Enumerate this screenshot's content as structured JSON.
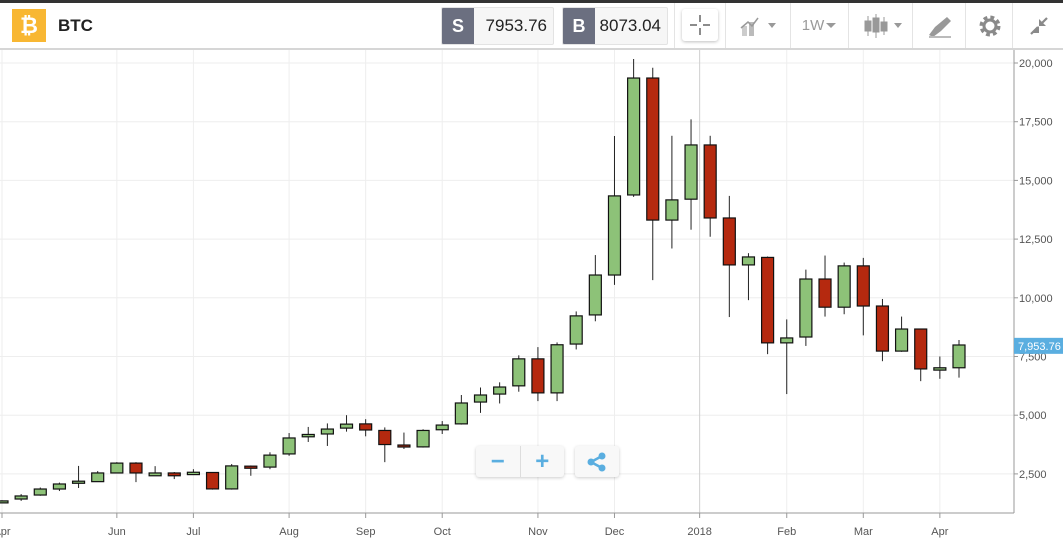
{
  "header": {
    "coin_icon": "bitcoin-icon",
    "coin_glyph": "₿",
    "symbol": "BTC",
    "sell_label": "S",
    "sell_price": "7953.76",
    "buy_label": "B",
    "buy_price": "8073.04",
    "timeframe": "1W",
    "tools": [
      "crosshair-icon",
      "chart-type-icon",
      "timeframe-dropdown",
      "candlestick-icon",
      "draw-icon",
      "gear-icon",
      "collapse-icon"
    ]
  },
  "colors": {
    "up": "#8dc278",
    "down": "#b5290f",
    "accent": "#5aaee0",
    "coin": "#f8b733"
  },
  "controls": {
    "zoom_out": "−",
    "zoom_in": "+"
  },
  "chart_data": {
    "type": "candlestick",
    "ylim": [
      0,
      20500
    ],
    "y_ticks": [
      "2,500",
      "5,000",
      "7,500",
      "10,000",
      "12,500",
      "15,000",
      "17,500",
      "20,000"
    ],
    "y_tick_values": [
      2500,
      5000,
      7500,
      10000,
      12500,
      15000,
      17500,
      20000
    ],
    "x_tick_labels": [
      "Apr",
      "Jun",
      "Jul",
      "Aug",
      "Sep",
      "Oct",
      "Nov",
      "Dec",
      "2018",
      "Feb",
      "Mar",
      "Apr"
    ],
    "last_price_label": "7,953.76",
    "last_price": 7953.76,
    "grid": true,
    "candles": [
      [
        1280,
        1380,
        1260,
        1350
      ],
      [
        1430,
        1640,
        1350,
        1560
      ],
      [
        1600,
        1920,
        1570,
        1856
      ],
      [
        1856,
        2130,
        1770,
        2070
      ],
      [
        2100,
        2840,
        1900,
        2190
      ],
      [
        2170,
        2620,
        2160,
        2540
      ],
      [
        2540,
        3000,
        2540,
        2960
      ],
      [
        2960,
        3000,
        2150,
        2540
      ],
      [
        2420,
        2830,
        2420,
        2540
      ],
      [
        2540,
        2580,
        2280,
        2420
      ],
      [
        2470,
        2700,
        2460,
        2570
      ],
      [
        2560,
        2580,
        1830,
        1860
      ],
      [
        1860,
        2920,
        1830,
        2840
      ],
      [
        2830,
        2860,
        2420,
        2740
      ],
      [
        2790,
        3420,
        2700,
        3300
      ],
      [
        3350,
        4240,
        3270,
        4030
      ],
      [
        4080,
        4500,
        3860,
        4180
      ],
      [
        4200,
        4650,
        3690,
        4410
      ],
      [
        4450,
        5000,
        4300,
        4620
      ],
      [
        4630,
        4830,
        4100,
        4370
      ],
      [
        4350,
        4480,
        3000,
        3750
      ],
      [
        3730,
        4260,
        3560,
        3650
      ],
      [
        3650,
        4400,
        3620,
        4350
      ],
      [
        4380,
        4750,
        4200,
        4580
      ],
      [
        4630,
        5860,
        4600,
        5520
      ],
      [
        5560,
        6180,
        5100,
        5860
      ],
      [
        5900,
        6400,
        5500,
        6200
      ],
      [
        6250,
        7550,
        6000,
        7400
      ],
      [
        7400,
        7900,
        5600,
        5950
      ],
      [
        5950,
        8100,
        5600,
        8000
      ],
      [
        8030,
        9420,
        7800,
        9230
      ],
      [
        9270,
        11820,
        9000,
        10970
      ],
      [
        10970,
        16890,
        10550,
        14340
      ],
      [
        14380,
        20170,
        14300,
        19360
      ],
      [
        19360,
        19800,
        10750,
        13310
      ],
      [
        13310,
        16900,
        12100,
        14170
      ],
      [
        14200,
        17600,
        12900,
        16510
      ],
      [
        16510,
        16900,
        12600,
        13400
      ],
      [
        13400,
        14340,
        9180,
        11400
      ],
      [
        11400,
        11900,
        9900,
        11740
      ],
      [
        11720,
        11760,
        7600,
        8080
      ],
      [
        8080,
        9080,
        5900,
        8290
      ],
      [
        8330,
        11200,
        7950,
        10800
      ],
      [
        10800,
        11800,
        9200,
        9600
      ],
      [
        9600,
        11500,
        9300,
        11360
      ],
      [
        11360,
        11700,
        8400,
        9650
      ],
      [
        9650,
        9950,
        7300,
        7730
      ],
      [
        7730,
        9200,
        7700,
        8670
      ],
      [
        8670,
        8660,
        6450,
        6970
      ],
      [
        6920,
        7500,
        6550,
        7020
      ],
      [
        7020,
        8200,
        6600,
        7990
      ]
    ]
  }
}
